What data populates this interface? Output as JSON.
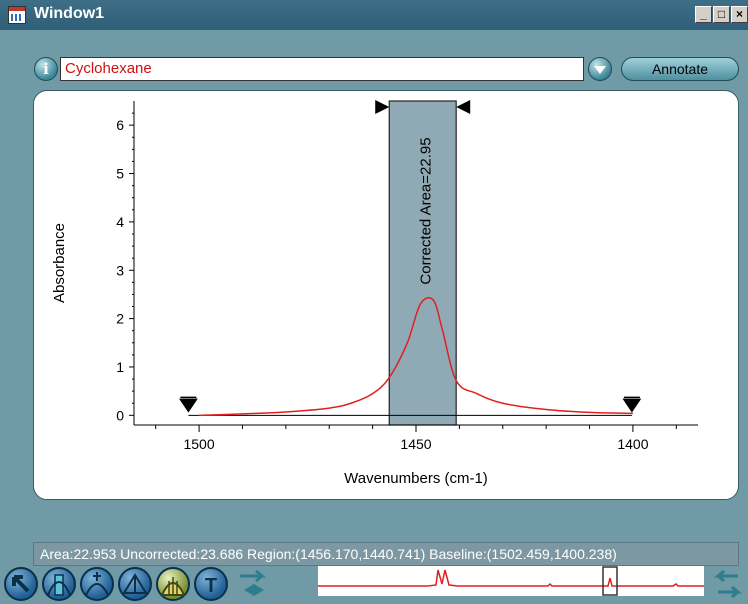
{
  "window": {
    "title": "Window1"
  },
  "toolbar": {
    "info_icon": "i",
    "spectrum_name": "Cyclohexane",
    "annotate_label": "Annotate"
  },
  "plot": {
    "annotation": "Corrected Area=22.95"
  },
  "chart_data": {
    "type": "line",
    "xlabel": "Wavenumbers (cm-1)",
    "ylabel": "Absorbance",
    "xlim": [
      1515,
      1385
    ],
    "ylim": [
      -0.2,
      6.5
    ],
    "x_ticks": [
      1500,
      1450,
      1400
    ],
    "y_ticks": [
      0,
      1,
      2,
      3,
      4,
      5,
      6
    ],
    "series": [
      {
        "color": "#e02020",
        "x": [
          1500,
          1490,
          1480,
          1470,
          1465,
          1460,
          1456.17,
          1452,
          1449,
          1446,
          1444,
          1440.74,
          1436,
          1430,
          1420,
          1410,
          1400
        ],
        "y": [
          0.0,
          0.03,
          0.07,
          0.15,
          0.25,
          0.45,
          0.78,
          1.5,
          2.3,
          2.38,
          1.8,
          0.72,
          0.45,
          0.25,
          0.12,
          0.06,
          0.04
        ]
      }
    ],
    "region": {
      "x_start": 1456.17,
      "x_end": 1440.74,
      "color": "#8faab5"
    },
    "baseline_markers": [
      1502.459,
      1400.238
    ]
  },
  "status": {
    "text": "Area:22.953 Uncorrected:23.686 Region:(1456.170,1440.741) Baseline:(1502.459,1400.238)"
  },
  "bottom_tools": [
    "pointer-tool-icon",
    "region-tool-icon",
    "peak-pick-tool-icon",
    "baseline-tool-icon",
    "area-tool-icon",
    "text-tool-icon"
  ]
}
